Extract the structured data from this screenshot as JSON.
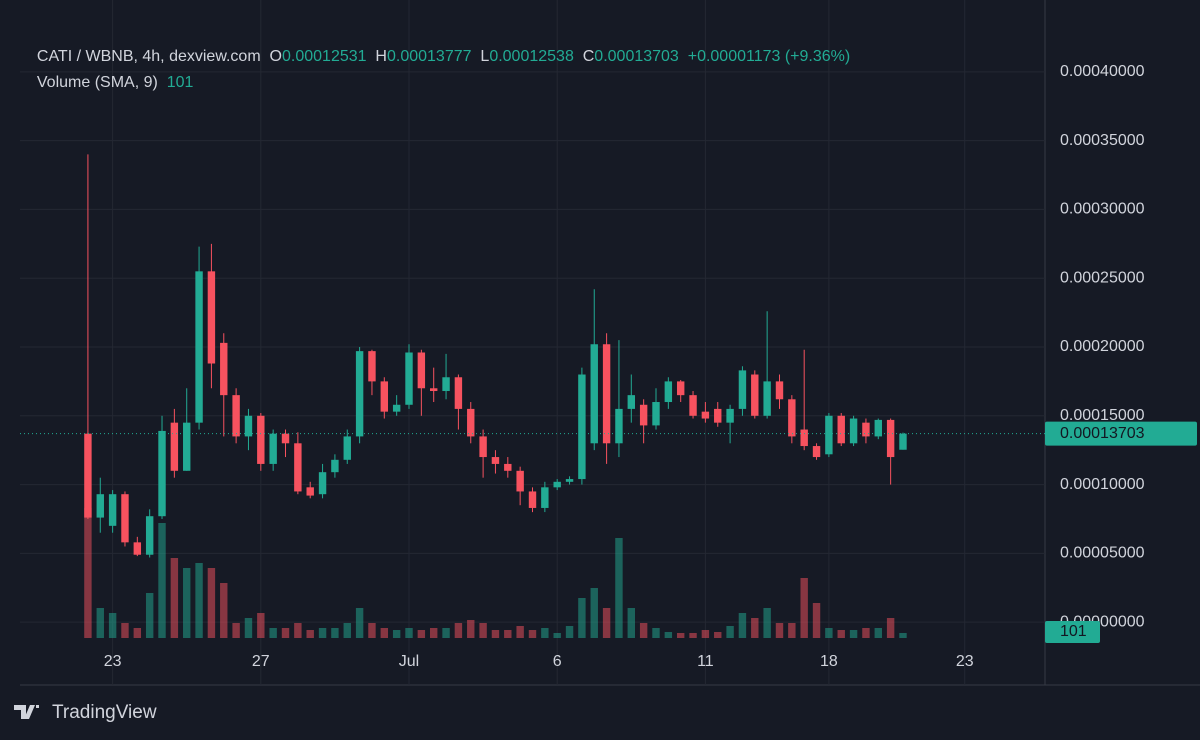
{
  "chart_data": {
    "type": "candlestick",
    "header": {
      "symbol": "CATI / WBNB, 4h, dexview.com",
      "labels": [
        "O",
        "H",
        "L",
        "C"
      ],
      "change": "+0.00001173 (+9.36%)",
      "volume_title": "Volume (SMA, 9)"
    },
    "volume_sma": 101,
    "brand": "TradingView",
    "up_color": "#22ab94",
    "down_color": "#f7525f",
    "grid": true,
    "categories": [
      null,
      null,
      null,
      null,
      null,
      null,
      null,
      "23",
      null,
      null,
      null,
      null,
      null,
      null,
      null,
      null,
      null,
      null,
      null,
      "27",
      null,
      null,
      null,
      null,
      null,
      null,
      null,
      null,
      null,
      null,
      null,
      "Jul",
      null,
      null,
      null,
      null,
      null,
      null,
      null,
      null,
      null,
      null,
      null,
      "6",
      null,
      null,
      null,
      null,
      null,
      null,
      null,
      null,
      null,
      null,
      null,
      "11",
      null,
      null,
      null,
      null,
      null,
      null,
      null,
      null,
      null,
      "18",
      null,
      null,
      null,
      null,
      null,
      null,
      null,
      null,
      null,
      null,
      "23",
      null,
      null,
      null,
      null,
      null,
      null
    ],
    "open": [
      null,
      null,
      null,
      null,
      null,
      0.000137,
      7.6e-05,
      7e-05,
      9.3e-05,
      5.8e-05,
      4.9e-05,
      7.7e-05,
      0.000145,
      0.00011,
      0.000145,
      0.000255,
      0.000203,
      0.000165,
      0.000135,
      0.00015,
      0.000115,
      0.000137,
      0.00013,
      9.8e-05,
      9.3e-05,
      0.000109,
      0.000118,
      0.000135,
      0.000197,
      0.000175,
      0.000153,
      0.000158,
      0.000196,
      0.00017,
      0.000168,
      0.000178,
      0.000155,
      0.000135,
      0.00012,
      0.000115,
      0.00011,
      9.5e-05,
      8.3e-05,
      9.8e-05,
      0.000102,
      0.000104,
      0.00013,
      0.000202,
      0.00013,
      0.000155,
      0.000158,
      0.000143,
      0.00016,
      0.000175,
      0.000165,
      0.000153,
      0.000155,
      0.000145,
      0.000155,
      0.00018,
      0.00015,
      0.000175,
      0.000162,
      0.00014,
      0.000128,
      0.000122,
      0.00015,
      0.00013,
      0.000145,
      0.000135,
      0.000147,
      0.00012531,
      null,
      null,
      null,
      null,
      null,
      null,
      null,
      null,
      null,
      null,
      null
    ],
    "high": [
      null,
      null,
      null,
      null,
      null,
      0.00034,
      0.000105,
      9.6e-05,
      9.5e-05,
      6.2e-05,
      8.2e-05,
      0.00015,
      0.000155,
      0.00017,
      0.000273,
      0.000275,
      0.00021,
      0.00017,
      0.000155,
      0.000152,
      0.00014,
      0.00014,
      0.000138,
      0.000102,
      0.000115,
      0.000122,
      0.00014,
      0.0002,
      0.000198,
      0.000178,
      0.000165,
      0.000202,
      0.000198,
      0.000185,
      0.000195,
      0.00018,
      0.00016,
      0.00014,
      0.000125,
      0.00012,
      0.000113,
      9.8e-05,
      0.000102,
      0.000104,
      0.000106,
      0.000185,
      0.000242,
      0.00021,
      0.000205,
      0.00018,
      0.000162,
      0.00017,
      0.000178,
      0.000176,
      0.000168,
      0.00016,
      0.00016,
      0.000158,
      0.000186,
      0.000183,
      0.000226,
      0.00018,
      0.000165,
      0.000198,
      0.00013,
      0.000152,
      0.000152,
      0.00015,
      0.000148,
      0.000148,
      0.000148,
      0.00013777,
      null,
      null,
      null,
      null,
      null,
      null,
      null,
      null,
      null,
      null,
      null
    ],
    "low": [
      null,
      null,
      null,
      null,
      null,
      7.5e-05,
      6.5e-05,
      6.5e-05,
      5.5e-05,
      4.8e-05,
      4.7e-05,
      7.5e-05,
      0.000105,
      0.00011,
      0.00014,
      0.00017,
      0.000135,
      0.00013,
      0.000125,
      0.00011,
      0.00011,
      0.00012,
      9.3e-05,
      9e-05,
      9e-05,
      0.000105,
      0.000115,
      0.00013,
      0.000165,
      0.000148,
      0.00015,
      0.000155,
      0.00015,
      0.00016,
      0.000162,
      0.00014,
      0.00013,
      0.000105,
      0.000108,
      0.000105,
      8.5e-05,
      8e-05,
      8e-05,
      9.6e-05,
      0.0001,
      0.0001,
      0.000125,
      0.000115,
      0.00012,
      0.000145,
      0.00013,
      0.00014,
      0.000155,
      0.00016,
      0.000148,
      0.000145,
      0.000142,
      0.00013,
      0.00015,
      0.000148,
      0.000148,
      0.000155,
      0.00013,
      0.000125,
      0.000118,
      0.00012,
      0.000128,
      0.000128,
      0.00013,
      0.000133,
      0.0001,
      0.00012538,
      null,
      null,
      null,
      null,
      null,
      null,
      null,
      null,
      null,
      null,
      null
    ],
    "close": [
      null,
      null,
      null,
      null,
      null,
      7.6e-05,
      9.3e-05,
      9.3e-05,
      5.8e-05,
      4.9e-05,
      7.7e-05,
      0.000139,
      0.00011,
      0.000145,
      0.000255,
      0.000188,
      0.000165,
      0.000135,
      0.00015,
      0.000115,
      0.000137,
      0.00013,
      9.5e-05,
      9.2e-05,
      0.000109,
      0.000118,
      0.000135,
      0.000197,
      0.000175,
      0.000153,
      0.000158,
      0.000196,
      0.00017,
      0.000168,
      0.000178,
      0.000155,
      0.000135,
      0.00012,
      0.000115,
      0.00011,
      9.5e-05,
      8.3e-05,
      9.8e-05,
      0.000102,
      0.000104,
      0.00018,
      0.000202,
      0.00013,
      0.000155,
      0.000165,
      0.000143,
      0.00016,
      0.000175,
      0.000165,
      0.00015,
      0.000148,
      0.000145,
      0.000155,
      0.000183,
      0.00015,
      0.000175,
      0.000162,
      0.000135,
      0.000128,
      0.00012,
      0.00015,
      0.00013,
      0.000148,
      0.000135,
      0.000147,
      0.00012,
      0.00013703,
      null,
      null,
      null,
      null,
      null,
      null,
      null,
      null,
      null,
      null,
      null
    ],
    "volume": [
      null,
      null,
      null,
      null,
      null,
      2600,
      600,
      500,
      300,
      200,
      900,
      2300,
      1600,
      1400,
      1500,
      1400,
      1100,
      300,
      400,
      500,
      200,
      200,
      300,
      160,
      200,
      200,
      300,
      600,
      300,
      200,
      160,
      200,
      160,
      200,
      200,
      300,
      360,
      300,
      160,
      160,
      240,
      160,
      200,
      100,
      240,
      800,
      1000,
      600,
      2000,
      600,
      300,
      200,
      120,
      100,
      100,
      160,
      120,
      240,
      500,
      400,
      600,
      300,
      300,
      1200,
      700,
      200,
      160,
      160,
      200,
      200,
      400,
      100,
      null,
      null,
      null,
      null,
      null,
      null,
      null,
      null,
      null,
      null,
      null
    ],
    "volume_lim": [
      0,
      4000
    ],
    "ylim": [
      -4.57e-05,
      0.0004377
    ],
    "yticks": [
      {
        "value": 0,
        "label": "0.00000000"
      },
      {
        "value": 5e-05,
        "label": "0.00005000"
      },
      {
        "value": 0.0001,
        "label": "0.00010000"
      },
      {
        "value": 0.00015,
        "label": "0.00015000"
      },
      {
        "value": 0.0002,
        "label": "0.00020000"
      },
      {
        "value": 0.00025,
        "label": "0.00025000"
      },
      {
        "value": 0.0003,
        "label": "0.00030000"
      },
      {
        "value": 0.00035,
        "label": "0.00035000"
      },
      {
        "value": 0.0004,
        "label": "0.00040000"
      }
    ]
  }
}
